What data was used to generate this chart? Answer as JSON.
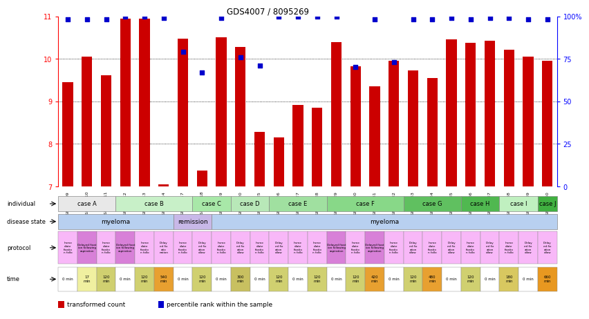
{
  "title": "GDS4007 / 8095269",
  "samples": [
    "GSM879509",
    "GSM879510",
    "GSM879511",
    "GSM879512",
    "GSM879513",
    "GSM879514",
    "GSM879517",
    "GSM879518",
    "GSM879519",
    "GSM879520",
    "GSM879525",
    "GSM879526",
    "GSM879527",
    "GSM879528",
    "GSM879529",
    "GSM879530",
    "GSM879531",
    "GSM879532",
    "GSM879533",
    "GSM879534",
    "GSM879535",
    "GSM879536",
    "GSM879537",
    "GSM879538",
    "GSM879539",
    "GSM879540"
  ],
  "bar_values": [
    9.45,
    10.05,
    9.62,
    10.95,
    10.95,
    7.05,
    10.48,
    7.37,
    10.5,
    10.28,
    8.28,
    8.15,
    8.92,
    8.85,
    10.4,
    9.82,
    9.35,
    9.95,
    9.72,
    9.55,
    10.45,
    10.38,
    10.42,
    10.22,
    10.05,
    9.95
  ],
  "dot_values": [
    98,
    98,
    98,
    100,
    100,
    99,
    79,
    67,
    99,
    76,
    71,
    100,
    100,
    100,
    100,
    70,
    98,
    73,
    98,
    98,
    99,
    98,
    99,
    99,
    98,
    98
  ],
  "bar_color": "#cc0000",
  "dot_color": "#0000cc",
  "ylim_left": [
    7,
    11
  ],
  "ylim_right": [
    0,
    100
  ],
  "yticks_left": [
    7,
    8,
    9,
    10,
    11
  ],
  "yticks_right": [
    0,
    25,
    50,
    75,
    100
  ],
  "ytick_labels_right": [
    "0",
    "25",
    "50",
    "75",
    "100%"
  ],
  "n_samples": 26,
  "legend_bar_label": "transformed count",
  "legend_dot_label": "percentile rank within the sample",
  "individual_data": [
    {
      "label": "case A",
      "start": 0,
      "end": 2,
      "color": "#e8e8e8"
    },
    {
      "label": "case B",
      "start": 3,
      "end": 6,
      "color": "#c8f0c8"
    },
    {
      "label": "case C",
      "start": 7,
      "end": 8,
      "color": "#a8e8a8"
    },
    {
      "label": "case D",
      "start": 9,
      "end": 10,
      "color": "#b8e8b8"
    },
    {
      "label": "case E",
      "start": 11,
      "end": 13,
      "color": "#a0e0a0"
    },
    {
      "label": "case F",
      "start": 14,
      "end": 17,
      "color": "#88d888"
    },
    {
      "label": "case G",
      "start": 18,
      "end": 20,
      "color": "#60c060"
    },
    {
      "label": "case H",
      "start": 21,
      "end": 22,
      "color": "#50b850"
    },
    {
      "label": "case I",
      "start": 23,
      "end": 24,
      "color": "#c0f0c0"
    },
    {
      "label": "case J",
      "start": 25,
      "end": 25,
      "color": "#40b040"
    }
  ],
  "disease_data": [
    {
      "label": "myeloma",
      "start": 0,
      "end": 5,
      "color": "#b8d0f0"
    },
    {
      "label": "remission",
      "start": 6,
      "end": 7,
      "color": "#c8b8e8"
    },
    {
      "label": "myeloma",
      "start": 8,
      "end": 25,
      "color": "#b8d0f0"
    }
  ],
  "protocol_info": [
    {
      "idx": 0,
      "color": "#f8b8f8",
      "text": "Imme\ndiate\nfixatio\nn follo"
    },
    {
      "idx": 1,
      "color": "#d880d8",
      "text": "Delayed fixat\nion following\naspiration"
    },
    {
      "idx": 2,
      "color": "#f8b8f8",
      "text": "Imme\ndiate\nfixatio\nn follo"
    },
    {
      "idx": 3,
      "color": "#d880d8",
      "text": "Delayed fixat\nion following\naspiration"
    },
    {
      "idx": 4,
      "color": "#f8b8f8",
      "text": "Imme\ndiate\nfixatio\nn follo"
    },
    {
      "idx": 5,
      "color": "#f8b8f8",
      "text": "Delay\ned fix\natio\nnation"
    },
    {
      "idx": 6,
      "color": "#f8b8f8",
      "text": "Imme\ndiate\nfixatio\nn follo"
    },
    {
      "idx": 7,
      "color": "#f8b8f8",
      "text": "Delay\ned fix\nation\nollow"
    },
    {
      "idx": 8,
      "color": "#f8b8f8",
      "text": "Imme\ndiate\nfixatio\nn follo"
    },
    {
      "idx": 9,
      "color": "#f8b8f8",
      "text": "Delay\ned fix\nation\nollow"
    },
    {
      "idx": 10,
      "color": "#f8b8f8",
      "text": "Imme\ndiate\nfixatio\nn follo"
    },
    {
      "idx": 11,
      "color": "#f8b8f8",
      "text": "Delay\ned fix\nation\nollow"
    },
    {
      "idx": 12,
      "color": "#f8b8f8",
      "text": "Imme\ndiate\nfixatio\nn follo"
    },
    {
      "idx": 13,
      "color": "#f8b8f8",
      "text": "Imme\ndiate\nfixatio\nn follo"
    },
    {
      "idx": 14,
      "color": "#d880d8",
      "text": "Delayed fixat\nion following\naspiration"
    },
    {
      "idx": 15,
      "color": "#f8b8f8",
      "text": "Imme\ndiate\nfixatio\nn follo"
    },
    {
      "idx": 16,
      "color": "#d880d8",
      "text": "Delayed fixat\nion following\naspiration"
    },
    {
      "idx": 17,
      "color": "#f8b8f8",
      "text": "Imme\ndiate\nfixatio\nn follo"
    },
    {
      "idx": 18,
      "color": "#f8b8f8",
      "text": "Delay\ned fix\nation\nollow"
    },
    {
      "idx": 19,
      "color": "#f8b8f8",
      "text": "Imme\ndiate\nfixatio\nn follo"
    },
    {
      "idx": 20,
      "color": "#f8b8f8",
      "text": "Delay\ned fix\nation\nollow"
    },
    {
      "idx": 21,
      "color": "#f8b8f8",
      "text": "Imme\ndiate\nfixatio\nn follo"
    },
    {
      "idx": 22,
      "color": "#f8b8f8",
      "text": "Delay\ned fix\nation\nollow"
    },
    {
      "idx": 23,
      "color": "#f8b8f8",
      "text": "Imme\ndiate\nfixatio\nn follo"
    },
    {
      "idx": 24,
      "color": "#f8b8f8",
      "text": "Delay\ned fix\nation\nollow"
    },
    {
      "idx": 25,
      "color": "#f8b8f8",
      "text": "Delay\ned fix\nation\nollow"
    }
  ],
  "time_info": [
    {
      "idx": 0,
      "color": "#ffffff",
      "text": "0 min"
    },
    {
      "idx": 1,
      "color": "#f0f0a0",
      "text": "17\nmin"
    },
    {
      "idx": 2,
      "color": "#d0d070",
      "text": "120\nmin"
    },
    {
      "idx": 3,
      "color": "#ffffff",
      "text": "0 min"
    },
    {
      "idx": 4,
      "color": "#d0d070",
      "text": "120\nmin"
    },
    {
      "idx": 5,
      "color": "#e8a030",
      "text": "540\nmin"
    },
    {
      "idx": 6,
      "color": "#ffffff",
      "text": "0 min"
    },
    {
      "idx": 7,
      "color": "#d0d070",
      "text": "120\nmin"
    },
    {
      "idx": 8,
      "color": "#ffffff",
      "text": "0 min"
    },
    {
      "idx": 9,
      "color": "#c8c060",
      "text": "300\nmin"
    },
    {
      "idx": 10,
      "color": "#ffffff",
      "text": "0 min"
    },
    {
      "idx": 11,
      "color": "#d0d070",
      "text": "120\nmin"
    },
    {
      "idx": 12,
      "color": "#ffffff",
      "text": "0 min"
    },
    {
      "idx": 13,
      "color": "#d0d070",
      "text": "120\nmin"
    },
    {
      "idx": 14,
      "color": "#ffffff",
      "text": "0 min"
    },
    {
      "idx": 15,
      "color": "#d0d070",
      "text": "120\nmin"
    },
    {
      "idx": 16,
      "color": "#e8a030",
      "text": "420\nmin"
    },
    {
      "idx": 17,
      "color": "#ffffff",
      "text": "0 min"
    },
    {
      "idx": 18,
      "color": "#d0d070",
      "text": "120\nmin"
    },
    {
      "idx": 19,
      "color": "#e8a030",
      "text": "480\nmin"
    },
    {
      "idx": 20,
      "color": "#ffffff",
      "text": "0 min"
    },
    {
      "idx": 21,
      "color": "#d0d070",
      "text": "120\nmin"
    },
    {
      "idx": 22,
      "color": "#ffffff",
      "text": "0 min"
    },
    {
      "idx": 23,
      "color": "#d8c860",
      "text": "180\nmin"
    },
    {
      "idx": 24,
      "color": "#ffffff",
      "text": "0 min"
    },
    {
      "idx": 25,
      "color": "#e89820",
      "text": "660\nmin"
    }
  ],
  "row_labels": [
    "individual",
    "disease state",
    "protocol",
    "time"
  ]
}
